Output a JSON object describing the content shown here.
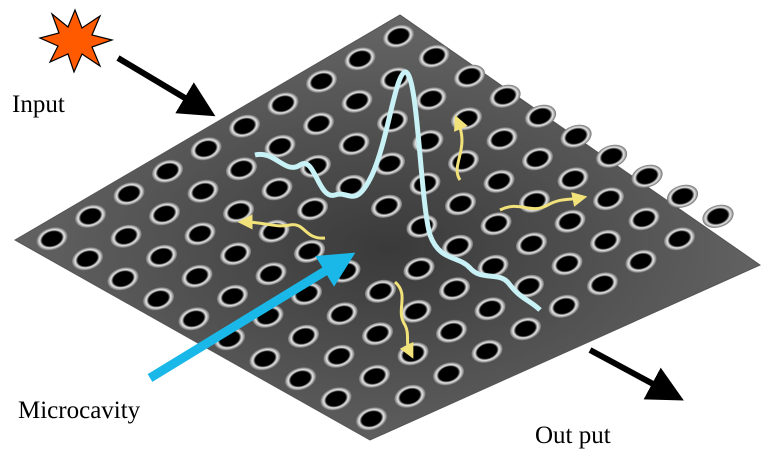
{
  "labels": {
    "input": "Input",
    "microcavity": "Microcavity",
    "output": "Out put"
  }
}
